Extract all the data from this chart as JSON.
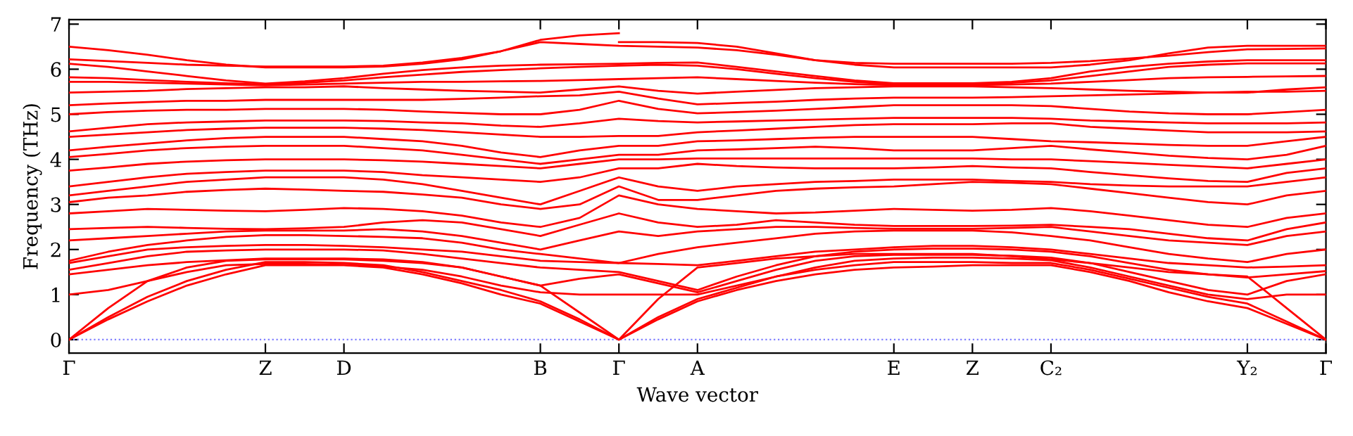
{
  "chart_data": {
    "type": "line",
    "xlabel": "Wave vector",
    "ylabel": "Frequency (THz)",
    "categories": [
      "Γ",
      null,
      null,
      null,
      null,
      "Z",
      null,
      "D",
      null,
      null,
      null,
      null,
      "B",
      null,
      "Γ",
      null,
      "A",
      null,
      null,
      null,
      null,
      "E",
      null,
      "Z",
      null,
      "C₂",
      null,
      null,
      null,
      null,
      "Y₂",
      null,
      "Γ"
    ],
    "ylim": [
      -0.3,
      7.1
    ],
    "yticks": [
      0,
      1,
      2,
      3,
      4,
      5,
      6,
      7
    ],
    "grid": false,
    "legend": false,
    "ref_lines": [
      {
        "axis": "y",
        "value": 0,
        "color": "#8080ff",
        "line_style": "dotted"
      }
    ],
    "series": [
      {
        "color": "#ff0000",
        "values": [
          0,
          0.45,
          0.85,
          1.2,
          1.45,
          1.65,
          1.65,
          1.65,
          1.6,
          1.45,
          1.25,
          1.0,
          0.8,
          0.4,
          0,
          0.45,
          0.85,
          1.1,
          1.3,
          1.45,
          1.55,
          1.6,
          1.62,
          1.65,
          1.65,
          1.65,
          1.5,
          1.3,
          1.05,
          0.85,
          0.7,
          0.35,
          0
        ]
      },
      {
        "color": "#ff0000",
        "values": [
          0,
          0.5,
          0.95,
          1.3,
          1.55,
          1.72,
          1.72,
          1.7,
          1.65,
          1.5,
          1.3,
          1.1,
          0.85,
          0.45,
          0,
          0.5,
          0.9,
          1.15,
          1.4,
          1.55,
          1.65,
          1.72,
          1.72,
          1.72,
          1.7,
          1.7,
          1.55,
          1.35,
          1.15,
          0.95,
          0.8,
          0.4,
          0
        ]
      },
      {
        "color": "#ff0000",
        "values": [
          0,
          0.7,
          1.3,
          1.6,
          1.75,
          1.78,
          1.78,
          1.78,
          1.75,
          1.7,
          1.6,
          1.4,
          1.2,
          0.6,
          0,
          0.9,
          1.6,
          1.7,
          1.8,
          1.85,
          1.9,
          1.9,
          1.9,
          1.9,
          1.85,
          1.78,
          1.7,
          1.6,
          1.5,
          1.45,
          1.4,
          0.7,
          0
        ]
      },
      {
        "color": "#ff0000",
        "values": [
          1.0,
          1.1,
          1.3,
          1.5,
          1.65,
          1.68,
          1.68,
          1.66,
          1.62,
          1.55,
          1.4,
          1.2,
          1.05,
          1.0,
          1.0,
          1.0,
          1.0,
          1.2,
          1.4,
          1.6,
          1.75,
          1.8,
          1.82,
          1.82,
          1.8,
          1.76,
          1.6,
          1.4,
          1.2,
          1.0,
          0.9,
          1.0,
          1.0
        ]
      },
      {
        "color": "#ff0000",
        "values": [
          1.45,
          1.55,
          1.65,
          1.72,
          1.76,
          1.8,
          1.8,
          1.8,
          1.78,
          1.72,
          1.6,
          1.4,
          1.2,
          1.35,
          1.45,
          1.25,
          1.05,
          1.3,
          1.55,
          1.75,
          1.85,
          1.88,
          1.88,
          1.88,
          1.86,
          1.82,
          1.7,
          1.5,
          1.3,
          1.1,
          1.0,
          1.3,
          1.45
        ]
      },
      {
        "color": "#ff0000",
        "values": [
          1.55,
          1.7,
          1.85,
          1.95,
          1.98,
          2.0,
          2.0,
          2.0,
          1.98,
          1.9,
          1.8,
          1.7,
          1.6,
          1.55,
          1.5,
          1.3,
          1.1,
          1.4,
          1.65,
          1.85,
          1.95,
          2.0,
          2.02,
          2.02,
          2.0,
          1.95,
          1.85,
          1.7,
          1.55,
          1.45,
          1.38,
          1.45,
          1.52
        ]
      },
      {
        "color": "#ff0000",
        "values": [
          1.7,
          1.85,
          2.0,
          2.05,
          2.08,
          2.1,
          2.1,
          2.08,
          2.05,
          2.0,
          1.95,
          1.85,
          1.75,
          1.72,
          1.7,
          1.68,
          1.65,
          1.75,
          1.85,
          1.95,
          2.0,
          2.05,
          2.08,
          2.08,
          2.05,
          2.0,
          1.9,
          1.8,
          1.7,
          1.65,
          1.6,
          1.62,
          1.65
        ]
      },
      {
        "color": "#ff0000",
        "values": [
          1.75,
          1.95,
          2.1,
          2.2,
          2.28,
          2.32,
          2.32,
          2.3,
          2.28,
          2.25,
          2.15,
          2.0,
          1.9,
          1.8,
          1.7,
          1.9,
          2.05,
          2.15,
          2.25,
          2.35,
          2.4,
          2.42,
          2.42,
          2.42,
          2.38,
          2.3,
          2.2,
          2.05,
          1.9,
          1.8,
          1.72,
          1.9,
          2.0
        ]
      },
      {
        "color": "#ff0000",
        "values": [
          2.2,
          2.25,
          2.3,
          2.35,
          2.4,
          2.42,
          2.42,
          2.42,
          2.45,
          2.4,
          2.3,
          2.15,
          2.0,
          2.2,
          2.4,
          2.3,
          2.4,
          2.45,
          2.5,
          2.5,
          2.48,
          2.46,
          2.46,
          2.46,
          2.48,
          2.5,
          2.4,
          2.3,
          2.2,
          2.15,
          2.1,
          2.3,
          2.4
        ]
      },
      {
        "color": "#ff0000",
        "values": [
          2.45,
          2.48,
          2.5,
          2.48,
          2.46,
          2.45,
          2.47,
          2.5,
          2.6,
          2.65,
          2.6,
          2.45,
          2.3,
          2.55,
          2.8,
          2.6,
          2.5,
          2.55,
          2.65,
          2.6,
          2.55,
          2.52,
          2.52,
          2.52,
          2.53,
          2.55,
          2.5,
          2.45,
          2.35,
          2.25,
          2.2,
          2.45,
          2.6
        ]
      },
      {
        "color": "#ff0000",
        "values": [
          2.8,
          2.85,
          2.9,
          2.88,
          2.86,
          2.85,
          2.88,
          2.92,
          2.9,
          2.85,
          2.75,
          2.6,
          2.5,
          2.7,
          3.2,
          3.0,
          2.9,
          2.85,
          2.8,
          2.82,
          2.86,
          2.9,
          2.88,
          2.86,
          2.88,
          2.92,
          2.85,
          2.75,
          2.65,
          2.55,
          2.5,
          2.7,
          2.8
        ]
      },
      {
        "color": "#ff0000",
        "values": [
          3.05,
          3.15,
          3.2,
          3.28,
          3.32,
          3.35,
          3.33,
          3.3,
          3.28,
          3.22,
          3.15,
          3.0,
          2.9,
          3.0,
          3.4,
          3.1,
          3.1,
          3.2,
          3.3,
          3.35,
          3.38,
          3.4,
          3.45,
          3.5,
          3.48,
          3.45,
          3.35,
          3.25,
          3.15,
          3.05,
          3.0,
          3.2,
          3.3
        ]
      },
      {
        "color": "#ff0000",
        "values": [
          3.2,
          3.3,
          3.4,
          3.5,
          3.55,
          3.6,
          3.6,
          3.6,
          3.55,
          3.45,
          3.3,
          3.15,
          3.0,
          3.3,
          3.6,
          3.4,
          3.3,
          3.4,
          3.45,
          3.5,
          3.52,
          3.55,
          3.55,
          3.55,
          3.52,
          3.5,
          3.45,
          3.42,
          3.4,
          3.4,
          3.4,
          3.5,
          3.6
        ]
      },
      {
        "color": "#ff0000",
        "values": [
          3.4,
          3.5,
          3.6,
          3.68,
          3.72,
          3.75,
          3.75,
          3.75,
          3.72,
          3.65,
          3.6,
          3.55,
          3.5,
          3.6,
          3.8,
          3.8,
          3.9,
          3.85,
          3.82,
          3.8,
          3.8,
          3.8,
          3.82,
          3.85,
          3.82,
          3.8,
          3.72,
          3.65,
          3.58,
          3.52,
          3.5,
          3.7,
          3.8
        ]
      },
      {
        "color": "#ff0000",
        "values": [
          3.75,
          3.82,
          3.9,
          3.95,
          3.98,
          4.0,
          4.0,
          4.0,
          3.98,
          3.95,
          3.9,
          3.85,
          3.8,
          3.9,
          4.0,
          4.0,
          4.02,
          4.02,
          4.02,
          4.02,
          4.02,
          4.02,
          4.02,
          4.02,
          4.0,
          4.0,
          3.96,
          3.92,
          3.88,
          3.84,
          3.8,
          3.9,
          4.0
        ]
      },
      {
        "color": "#ff0000",
        "values": [
          4.05,
          4.12,
          4.2,
          4.25,
          4.28,
          4.3,
          4.3,
          4.3,
          4.25,
          4.2,
          4.1,
          4.0,
          3.9,
          4.0,
          4.1,
          4.1,
          4.2,
          4.22,
          4.25,
          4.28,
          4.25,
          4.2,
          4.2,
          4.2,
          4.25,
          4.3,
          4.22,
          4.15,
          4.08,
          4.03,
          4.0,
          4.1,
          4.3
        ]
      },
      {
        "color": "#ff0000",
        "values": [
          4.2,
          4.28,
          4.35,
          4.42,
          4.47,
          4.5,
          4.5,
          4.5,
          4.45,
          4.4,
          4.3,
          4.15,
          4.05,
          4.2,
          4.3,
          4.3,
          4.4,
          4.42,
          4.45,
          4.48,
          4.5,
          4.5,
          4.5,
          4.5,
          4.45,
          4.4,
          4.38,
          4.35,
          4.32,
          4.3,
          4.3,
          4.4,
          4.5
        ]
      },
      {
        "color": "#ff0000",
        "values": [
          4.5,
          4.55,
          4.6,
          4.65,
          4.68,
          4.7,
          4.7,
          4.7,
          4.68,
          4.65,
          4.6,
          4.55,
          4.5,
          4.5,
          4.52,
          4.52,
          4.6,
          4.64,
          4.68,
          4.72,
          4.76,
          4.78,
          4.78,
          4.78,
          4.8,
          4.8,
          4.72,
          4.68,
          4.64,
          4.6,
          4.6,
          4.6,
          4.62
        ]
      },
      {
        "color": "#ff0000",
        "values": [
          4.62,
          4.7,
          4.78,
          4.82,
          4.84,
          4.86,
          4.86,
          4.86,
          4.85,
          4.82,
          4.8,
          4.75,
          4.72,
          4.8,
          4.9,
          4.85,
          4.82,
          4.84,
          4.86,
          4.88,
          4.9,
          4.92,
          4.92,
          4.92,
          4.92,
          4.9,
          4.86,
          4.84,
          4.82,
          4.8,
          4.8,
          4.8,
          4.82
        ]
      },
      {
        "color": "#ff0000",
        "values": [
          5.0,
          5.05,
          5.08,
          5.1,
          5.1,
          5.12,
          5.12,
          5.12,
          5.1,
          5.06,
          5.03,
          5.0,
          5.0,
          5.1,
          5.3,
          5.12,
          5.02,
          5.05,
          5.08,
          5.12,
          5.16,
          5.2,
          5.2,
          5.2,
          5.2,
          5.18,
          5.12,
          5.06,
          5.02,
          5.0,
          5.0,
          5.05,
          5.1
        ]
      },
      {
        "color": "#ff0000",
        "values": [
          5.2,
          5.24,
          5.27,
          5.3,
          5.3,
          5.32,
          5.32,
          5.32,
          5.32,
          5.32,
          5.34,
          5.37,
          5.4,
          5.42,
          5.5,
          5.35,
          5.22,
          5.25,
          5.28,
          5.32,
          5.35,
          5.37,
          5.37,
          5.37,
          5.38,
          5.4,
          5.42,
          5.44,
          5.46,
          5.48,
          5.5,
          5.5,
          5.52
        ]
      },
      {
        "color": "#ff0000",
        "values": [
          5.48,
          5.5,
          5.52,
          5.56,
          5.58,
          5.6,
          5.6,
          5.62,
          5.58,
          5.55,
          5.52,
          5.5,
          5.48,
          5.55,
          5.62,
          5.52,
          5.46,
          5.5,
          5.54,
          5.58,
          5.6,
          5.62,
          5.62,
          5.62,
          5.6,
          5.58,
          5.55,
          5.52,
          5.5,
          5.48,
          5.48,
          5.55,
          5.6
        ]
      },
      {
        "color": "#ff0000",
        "values": [
          5.72,
          5.72,
          5.7,
          5.68,
          5.66,
          5.64,
          5.66,
          5.68,
          5.7,
          5.72,
          5.72,
          5.73,
          5.74,
          5.76,
          5.78,
          5.8,
          5.82,
          5.78,
          5.74,
          5.7,
          5.67,
          5.65,
          5.65,
          5.65,
          5.66,
          5.68,
          5.72,
          5.76,
          5.8,
          5.82,
          5.83,
          5.84,
          5.85
        ]
      },
      {
        "color": "#ff0000",
        "values": [
          5.82,
          5.8,
          5.76,
          5.72,
          5.69,
          5.66,
          5.7,
          5.75,
          5.82,
          5.88,
          5.94,
          5.98,
          6.02,
          6.05,
          6.08,
          6.1,
          6.08,
          6.0,
          5.9,
          5.8,
          5.72,
          5.67,
          5.67,
          5.67,
          5.7,
          5.75,
          5.85,
          5.95,
          6.05,
          6.1,
          6.13,
          6.13,
          6.13
        ]
      },
      {
        "color": "#ff0000",
        "values": [
          6.12,
          6.05,
          5.95,
          5.85,
          5.75,
          5.68,
          5.73,
          5.8,
          5.9,
          5.98,
          6.04,
          6.08,
          6.1,
          6.11,
          6.12,
          6.14,
          6.15,
          6.05,
          5.95,
          5.85,
          5.75,
          5.69,
          5.69,
          5.69,
          5.72,
          5.8,
          5.95,
          6.05,
          6.12,
          6.17,
          6.2,
          6.2,
          6.2
        ]
      },
      {
        "color": "#ff0000",
        "values": [
          6.22,
          6.18,
          6.14,
          6.1,
          6.08,
          6.06,
          6.06,
          6.06,
          6.08,
          6.15,
          6.25,
          6.4,
          6.6,
          6.56,
          6.52,
          6.5,
          6.48,
          6.42,
          6.32,
          6.2,
          6.14,
          6.12,
          6.12,
          6.12,
          6.12,
          6.14,
          6.18,
          6.24,
          6.3,
          6.38,
          6.44,
          6.45,
          6.46
        ]
      },
      {
        "color": "#ff0000",
        "values": [
          6.5,
          6.42,
          6.32,
          6.2,
          6.1,
          6.04,
          6.04,
          6.04,
          6.06,
          6.12,
          6.22,
          6.4,
          6.65,
          6.75,
          6.8,
          null,
          null,
          null,
          null,
          null,
          null,
          null,
          null,
          null,
          null,
          null,
          null,
          null,
          null,
          null,
          null,
          null,
          null
        ]
      },
      {
        "color": "#ff0000",
        "values": [
          null,
          null,
          null,
          null,
          null,
          null,
          null,
          null,
          null,
          null,
          null,
          null,
          null,
          null,
          6.6,
          6.6,
          6.58,
          6.5,
          6.35,
          6.2,
          6.1,
          6.04,
          6.04,
          6.04,
          6.04,
          6.04,
          6.1,
          6.2,
          6.35,
          6.48,
          6.52,
          6.52,
          6.52
        ]
      }
    ]
  }
}
